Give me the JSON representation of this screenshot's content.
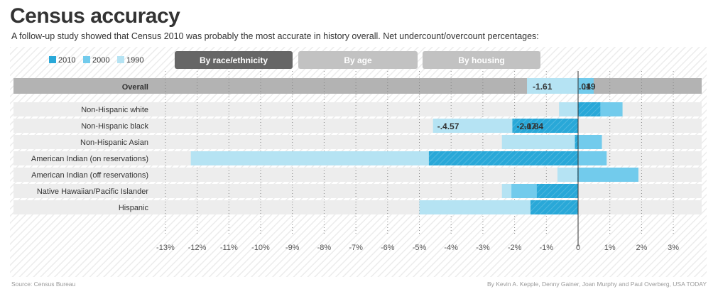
{
  "header": {
    "title": "Census accuracy",
    "subtitle": "A follow-up study showed that Census 2010 was probably the most accurate in history overall. Net undercount/overcount percentages:"
  },
  "legend": [
    {
      "label": "2010",
      "color": "#29a8d8"
    },
    {
      "label": "2000",
      "color": "#72cbec"
    },
    {
      "label": "1990",
      "color": "#b5e3f3"
    }
  ],
  "tabs": [
    {
      "label": "By race/ethnicity",
      "active": true
    },
    {
      "label": "By age",
      "active": false
    },
    {
      "label": "By housing",
      "active": false
    }
  ],
  "footer": {
    "source": "Source: Census Bureau",
    "credit": "By Kevin A. Kepple, Denny Gainer, Joan Murphy and Paul Overberg, USA TODAY"
  },
  "chart_data": {
    "type": "bar",
    "orientation": "horizontal",
    "xlim": [
      -13,
      3
    ],
    "x_ticks": [
      "-13%",
      "-12%",
      "-11%",
      "-10%",
      "-9%",
      "-8%",
      "-7%",
      "-6%",
      "-5%",
      "-4%",
      "-3%",
      "-2%",
      "-1%",
      "0",
      "1%",
      "2%",
      "3%"
    ],
    "overall": {
      "category": "Overall",
      "values": {
        "2010": 0.01,
        "2000": 0.49,
        "1990": -1.61
      },
      "labels": [
        "-1.61",
        ".01",
        ".49"
      ]
    },
    "categories": [
      "Non-Hispanic white",
      "Non-Hispanic black",
      "Non-Hispanic Asian",
      "American Indian (on reservations)",
      "American Indian (off reservations)",
      "Native Hawaiian/Pacific Islander",
      "Hispanic"
    ],
    "series": [
      {
        "name": "2010",
        "values": [
          0.7,
          -2.07,
          -0.1,
          -4.7,
          -0.02,
          -1.3,
          -1.5
        ]
      },
      {
        "name": "2000",
        "values": [
          1.4,
          -1.84,
          0.75,
          0.9,
          1.9,
          -2.1,
          -0.7
        ]
      },
      {
        "name": "1990",
        "values": [
          -0.6,
          -4.57,
          -2.4,
          -12.2,
          -0.65,
          -2.4,
          -5.0
        ]
      }
    ],
    "value_labels": [
      {
        "category": "Non-Hispanic black",
        "series": "1990",
        "text": "-.4.57"
      },
      {
        "category": "Non-Hispanic black",
        "series": "2010",
        "text": "-2.07"
      },
      {
        "category": "Non-Hispanic black",
        "series": "2000",
        "text": "-1.84"
      }
    ]
  }
}
